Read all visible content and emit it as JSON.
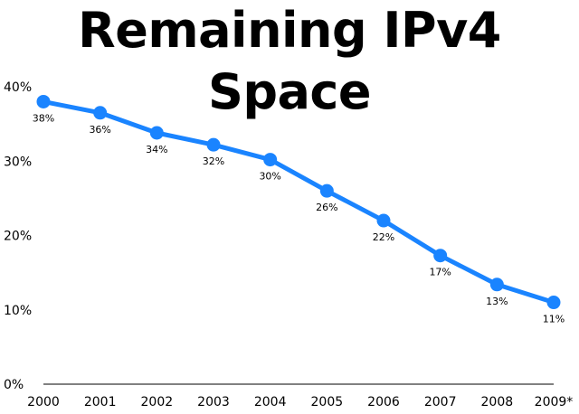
{
  "chart_data": {
    "type": "line",
    "title": "Remaining IPv4 Space",
    "categories": [
      "2000",
      "2001",
      "2002",
      "2003",
      "2004",
      "2005",
      "2006",
      "2007",
      "2008",
      "2009*"
    ],
    "series": [
      {
        "values": [
          38,
          36.5,
          33.8,
          32.2,
          30.2,
          26,
          22,
          17.3,
          13.4,
          11
        ],
        "labels": [
          "38%",
          "36%",
          "34%",
          "32%",
          "30%",
          "26%",
          "22%",
          "17%",
          "13%",
          "11%"
        ],
        "color": "#1a84ff"
      }
    ],
    "ylim": [
      0,
      40
    ],
    "yticks": [
      0,
      10,
      20,
      30,
      40
    ],
    "ytick_labels": [
      "0%",
      "10%",
      "20%",
      "30%",
      "40%"
    ],
    "grid": false,
    "xlabel": "",
    "ylabel": ""
  }
}
